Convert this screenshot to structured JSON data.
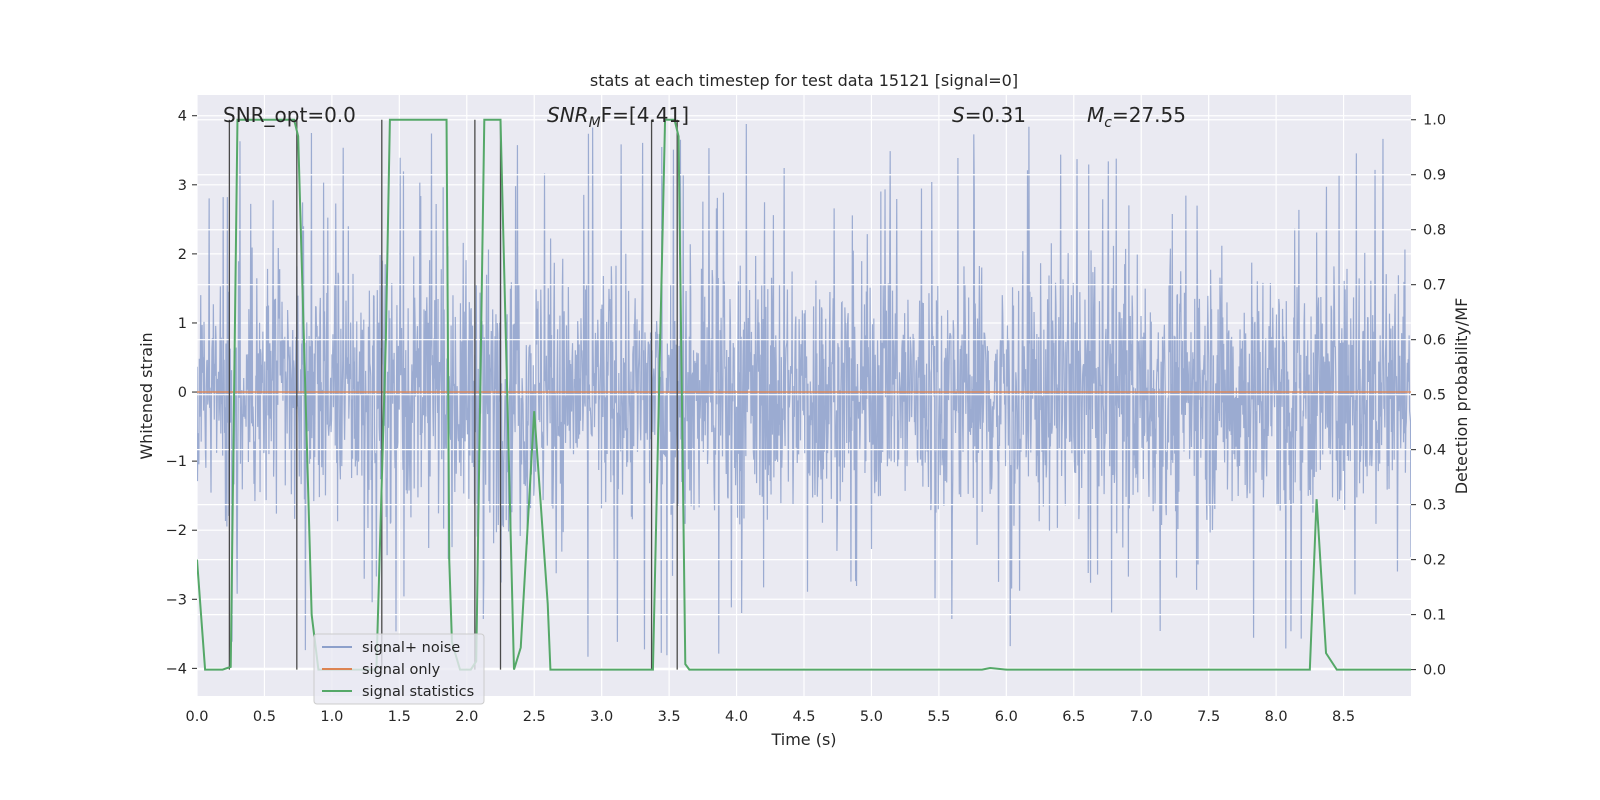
{
  "chart_data": {
    "type": "line",
    "title": "stats at each timestep for test data 15121 [signal=0]",
    "xlabel": "Time (s)",
    "ylabel": "Whitened strain",
    "y2label": "Detection probability/MF",
    "xlim": [
      0.0,
      9.0
    ],
    "ylim": [
      -4.4,
      4.3
    ],
    "y2lim": [
      -0.048,
      1.045
    ],
    "xticks": [
      0.0,
      0.5,
      1.0,
      1.5,
      2.0,
      2.5,
      3.0,
      3.5,
      4.0,
      4.5,
      5.0,
      5.5,
      6.0,
      6.5,
      7.0,
      7.5,
      8.0,
      8.5
    ],
    "xtick_labels": [
      "0.0",
      "0.5",
      "1.0",
      "1.5",
      "2.0",
      "2.5",
      "3.0",
      "3.5",
      "4.0",
      "4.5",
      "5.0",
      "5.5",
      "6.0",
      "6.5",
      "7.0",
      "7.5",
      "8.0",
      "8.5"
    ],
    "yticks": [
      4,
      3,
      2,
      1,
      0,
      -1,
      -2,
      -3,
      -4
    ],
    "ytick_labels": [
      "4",
      "3",
      "2",
      "1",
      "0",
      "−1",
      "−2",
      "−3",
      "−4"
    ],
    "y2ticks": [
      1.0,
      0.9,
      0.8,
      0.7,
      0.6,
      0.5,
      0.4,
      0.3,
      0.2,
      0.1,
      0.0
    ],
    "y2tick_labels": [
      "1.0",
      "0.9",
      "0.8",
      "0.7",
      "0.6",
      "0.5",
      "0.4",
      "0.3",
      "0.2",
      "0.1",
      "0.0"
    ],
    "annotations": {
      "snr_opt": "SNR_opt=0.0",
      "snr_mf_main": "SNR",
      "snr_mf_sub": "M",
      "snr_mf_tail": "F=[4.41]",
      "s_main": "S",
      "s_value": "=0.31",
      "mc_main": "M",
      "mc_sub": "c",
      "mc_value": "=27.55"
    },
    "legend": {
      "position": "lower-left",
      "entries": [
        {
          "label": "signal+ noise",
          "color": "#8da0cb"
        },
        {
          "label": "signal only",
          "color": "#dd8452"
        },
        {
          "label": "signal statistics",
          "color": "#55a868"
        }
      ]
    },
    "series": [
      {
        "name": "signal+ noise",
        "axis": "left",
        "color": "#8da0cb",
        "description": "dense noise trace, approx. values",
        "noise": {
          "samples": 2600,
          "envelope_min": -3.3,
          "envelope_max": 3.2,
          "peak_max": 3.9,
          "peak_min": -4.0,
          "seed": 15121
        }
      },
      {
        "name": "signal only",
        "axis": "left",
        "color": "#dd8452",
        "x": [
          0.0,
          9.0
        ],
        "y": [
          0.0,
          0.0
        ]
      },
      {
        "name": "signal statistics",
        "axis": "right",
        "color": "#55a868",
        "x": [
          0.0,
          0.06,
          0.19,
          0.25,
          0.3,
          0.55,
          0.72,
          0.75,
          0.85,
          0.9,
          1.33,
          1.4,
          1.43,
          1.85,
          1.87,
          1.89,
          1.95,
          2.03,
          2.07,
          2.13,
          2.25,
          2.3,
          2.35,
          2.4,
          2.5,
          2.6,
          2.62,
          2.9,
          3.0,
          3.38,
          3.47,
          3.54,
          3.57,
          3.62,
          3.65,
          3.72,
          5.82,
          5.88,
          6.0,
          8.25,
          8.3,
          8.37,
          8.45,
          9.0
        ],
        "y": [
          0.2,
          0.0,
          0.0,
          0.005,
          1.0,
          1.0,
          1.0,
          0.97,
          0.1,
          0.0,
          0.0,
          0.6,
          1.0,
          1.0,
          0.2,
          0.05,
          0.0,
          0.0,
          0.015,
          1.0,
          1.0,
          0.5,
          0.0,
          0.04,
          0.47,
          0.12,
          0.0,
          0.0,
          0.0,
          0.0,
          1.0,
          1.0,
          0.97,
          0.01,
          0.0,
          0.0,
          0.0,
          0.003,
          0.0,
          0.0,
          0.31,
          0.03,
          0.0,
          0.0
        ]
      },
      {
        "name": "event markers",
        "axis": "right",
        "color": "#4a4a4a",
        "x": [
          0.24,
          0.74,
          1.37,
          2.06,
          2.25,
          3.37,
          3.56
        ]
      }
    ]
  }
}
